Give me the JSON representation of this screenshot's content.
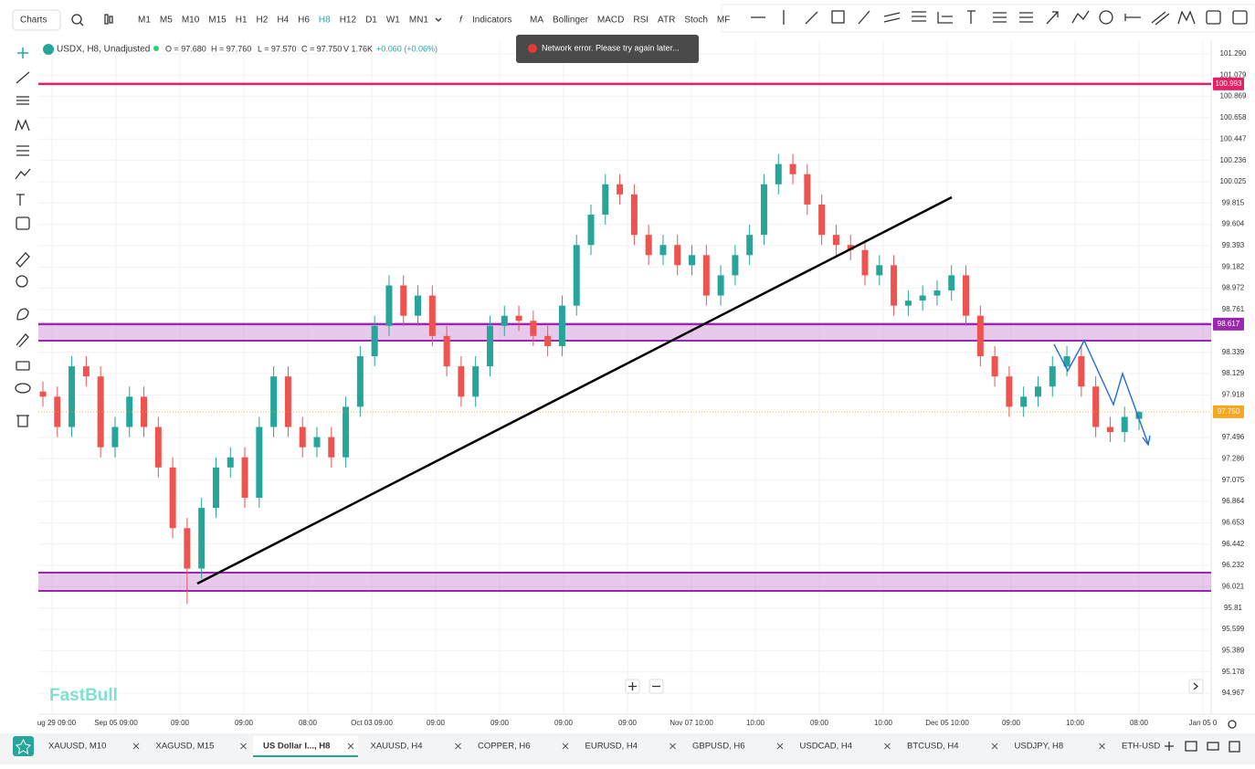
{
  "toolbar": {
    "menu": "Charts",
    "timeframes": [
      "M1",
      "M5",
      "M10",
      "M15",
      "H1",
      "H2",
      "H4",
      "H6",
      "H8",
      "H12",
      "D1",
      "W1",
      "MN1"
    ],
    "active_timeframe": 8,
    "indicators_button": "Indicators",
    "indicators": [
      "MA",
      "Bollinger",
      "MACD",
      "RSI",
      "ATR",
      "Stoch",
      "MF"
    ]
  },
  "legend": {
    "symbol": "USDX, H8, Unadjusted",
    "open": "O = 97.680",
    "high": "H = 97.760",
    "low": "L = 97.570",
    "close": "C = 97.750",
    "volume": "V 1.76K",
    "change": "+0.060 (+0.06%)"
  },
  "toast": "Network error. Please try again later...",
  "watermark": "FastBull",
  "chart_data": {
    "type": "candlestick",
    "up_color": "#26a69a",
    "down_color": "#ef5350",
    "ylim": [
      94.76,
      101.416
    ],
    "yticks": [
      {
        "value": 101.29,
        "label": "101.290"
      },
      101.079,
      100.869,
      100.658,
      100.447,
      100.236,
      100.025,
      99.815,
      99.604,
      99.393,
      99.182,
      98.972,
      98.761,
      98.339,
      98.129,
      97.918,
      97.496,
      97.286,
      97.075,
      96.864,
      96.653,
      96.442,
      96.232,
      96.021,
      95.81,
      95.599,
      95.389,
      95.178,
      94.967
    ],
    "x_labels": [
      "ug 29 09:00",
      "Sep 05 09:00",
      "09:00",
      "09:00",
      "08:00",
      "Oct 03 09:00",
      "09:00",
      "09:00",
      "09:00",
      "09:00",
      "Nov 07 10:00",
      "10:00",
      "09:00",
      "10:00",
      "Dec 05 10:00",
      "09:00",
      "10:00",
      "08:00",
      "Jan 05 0"
    ],
    "price_markers": [
      {
        "value": 100.993,
        "color": "#e91e63"
      },
      {
        "value": 98.617,
        "color": "#9c27b0"
      },
      {
        "value": 97.75,
        "label": "97.750",
        "color": "#f5a623"
      }
    ],
    "candles": [
      [
        97.95,
        98.05,
        97.8,
        97.9
      ],
      [
        97.9,
        98.0,
        97.5,
        97.6
      ],
      [
        97.6,
        98.3,
        97.5,
        98.2
      ],
      [
        98.2,
        98.3,
        98.0,
        98.1
      ],
      [
        98.1,
        98.2,
        97.3,
        97.4
      ],
      [
        97.4,
        97.7,
        97.3,
        97.6
      ],
      [
        97.6,
        98.0,
        97.5,
        97.9
      ],
      [
        97.9,
        98.0,
        97.5,
        97.6
      ],
      [
        97.6,
        97.7,
        97.1,
        97.2
      ],
      [
        97.2,
        97.3,
        96.5,
        96.6
      ],
      [
        96.6,
        96.7,
        95.85,
        96.2
      ],
      [
        96.2,
        96.9,
        96.1,
        96.8
      ],
      [
        96.8,
        97.3,
        96.7,
        97.2
      ],
      [
        97.2,
        97.4,
        97.1,
        97.3
      ],
      [
        97.3,
        97.4,
        96.8,
        96.9
      ],
      [
        96.9,
        97.7,
        96.8,
        97.6
      ],
      [
        97.6,
        98.2,
        97.5,
        98.1
      ],
      [
        98.1,
        98.2,
        97.5,
        97.6
      ],
      [
        97.6,
        97.7,
        97.3,
        97.4
      ],
      [
        97.4,
        97.6,
        97.3,
        97.5
      ],
      [
        97.5,
        97.6,
        97.2,
        97.3
      ],
      [
        97.3,
        97.9,
        97.2,
        97.8
      ],
      [
        97.8,
        98.4,
        97.7,
        98.3
      ],
      [
        98.3,
        98.7,
        98.2,
        98.6
      ],
      [
        98.6,
        99.1,
        98.5,
        99.0
      ],
      [
        99.0,
        99.1,
        98.6,
        98.7
      ],
      [
        98.7,
        99.0,
        98.6,
        98.9
      ],
      [
        98.9,
        99.0,
        98.4,
        98.5
      ],
      [
        98.5,
        98.6,
        98.1,
        98.2
      ],
      [
        98.2,
        98.3,
        97.8,
        97.9
      ],
      [
        97.9,
        98.3,
        97.8,
        98.2
      ],
      [
        98.2,
        98.7,
        98.1,
        98.6
      ],
      [
        98.6,
        98.8,
        98.5,
        98.7
      ],
      [
        98.7,
        98.8,
        98.55,
        98.65
      ],
      [
        98.65,
        98.75,
        98.4,
        98.5
      ],
      [
        98.5,
        98.6,
        98.3,
        98.4
      ],
      [
        98.4,
        98.9,
        98.3,
        98.8
      ],
      [
        98.8,
        99.5,
        98.7,
        99.4
      ],
      [
        99.4,
        99.8,
        99.3,
        99.7
      ],
      [
        99.7,
        100.1,
        99.6,
        100.0
      ],
      [
        100.0,
        100.1,
        99.8,
        99.9
      ],
      [
        99.9,
        100.0,
        99.4,
        99.5
      ],
      [
        99.5,
        99.6,
        99.2,
        99.3
      ],
      [
        99.3,
        99.5,
        99.2,
        99.4
      ],
      [
        99.4,
        99.5,
        99.1,
        99.2
      ],
      [
        99.2,
        99.4,
        99.1,
        99.3
      ],
      [
        99.3,
        99.4,
        98.8,
        98.9
      ],
      [
        98.9,
        99.2,
        98.8,
        99.1
      ],
      [
        99.1,
        99.4,
        99.0,
        99.3
      ],
      [
        99.3,
        99.6,
        99.2,
        99.5
      ],
      [
        99.5,
        100.1,
        99.4,
        100.0
      ],
      [
        100.0,
        100.3,
        99.9,
        100.2
      ],
      [
        100.2,
        100.3,
        100.0,
        100.1
      ],
      [
        100.1,
        100.2,
        99.7,
        99.8
      ],
      [
        99.8,
        99.9,
        99.4,
        99.5
      ],
      [
        99.5,
        99.6,
        99.3,
        99.4
      ],
      [
        99.4,
        99.5,
        99.25,
        99.35
      ],
      [
        99.35,
        99.45,
        99.0,
        99.1
      ],
      [
        99.1,
        99.3,
        99.0,
        99.2
      ],
      [
        99.2,
        99.3,
        98.7,
        98.8
      ],
      [
        98.8,
        98.95,
        98.7,
        98.85
      ],
      [
        98.85,
        99.0,
        98.75,
        98.9
      ],
      [
        98.9,
        99.05,
        98.8,
        98.95
      ],
      [
        98.95,
        99.2,
        98.85,
        99.1
      ],
      [
        99.1,
        99.2,
        98.6,
        98.7
      ],
      [
        98.7,
        98.8,
        98.2,
        98.3
      ],
      [
        98.3,
        98.4,
        98.0,
        98.1
      ],
      [
        98.1,
        98.2,
        97.7,
        97.8
      ],
      [
        97.8,
        98.0,
        97.7,
        97.9
      ],
      [
        97.9,
        98.1,
        97.8,
        98.0
      ],
      [
        98.0,
        98.3,
        97.9,
        98.2
      ],
      [
        98.2,
        98.4,
        98.1,
        98.3
      ],
      [
        98.3,
        98.4,
        97.9,
        98.0
      ],
      [
        98.0,
        98.1,
        97.5,
        97.6
      ],
      [
        97.6,
        97.7,
        97.45,
        97.55
      ],
      [
        97.55,
        97.8,
        97.45,
        97.7
      ],
      [
        97.68,
        97.76,
        97.57,
        97.75
      ]
    ]
  },
  "tabs": [
    "XAUUSD, M10",
    "XAGUSD, M15",
    "US Dollar I..., H8",
    "XAUUSD, H4",
    "COPPER, H6",
    "EURUSD, H4",
    "GBPUSD, H6",
    "USDCAD, H4",
    "BTCUSD, H4",
    "USDJPY, H8",
    "ETH-USD"
  ],
  "active_tab": 2
}
